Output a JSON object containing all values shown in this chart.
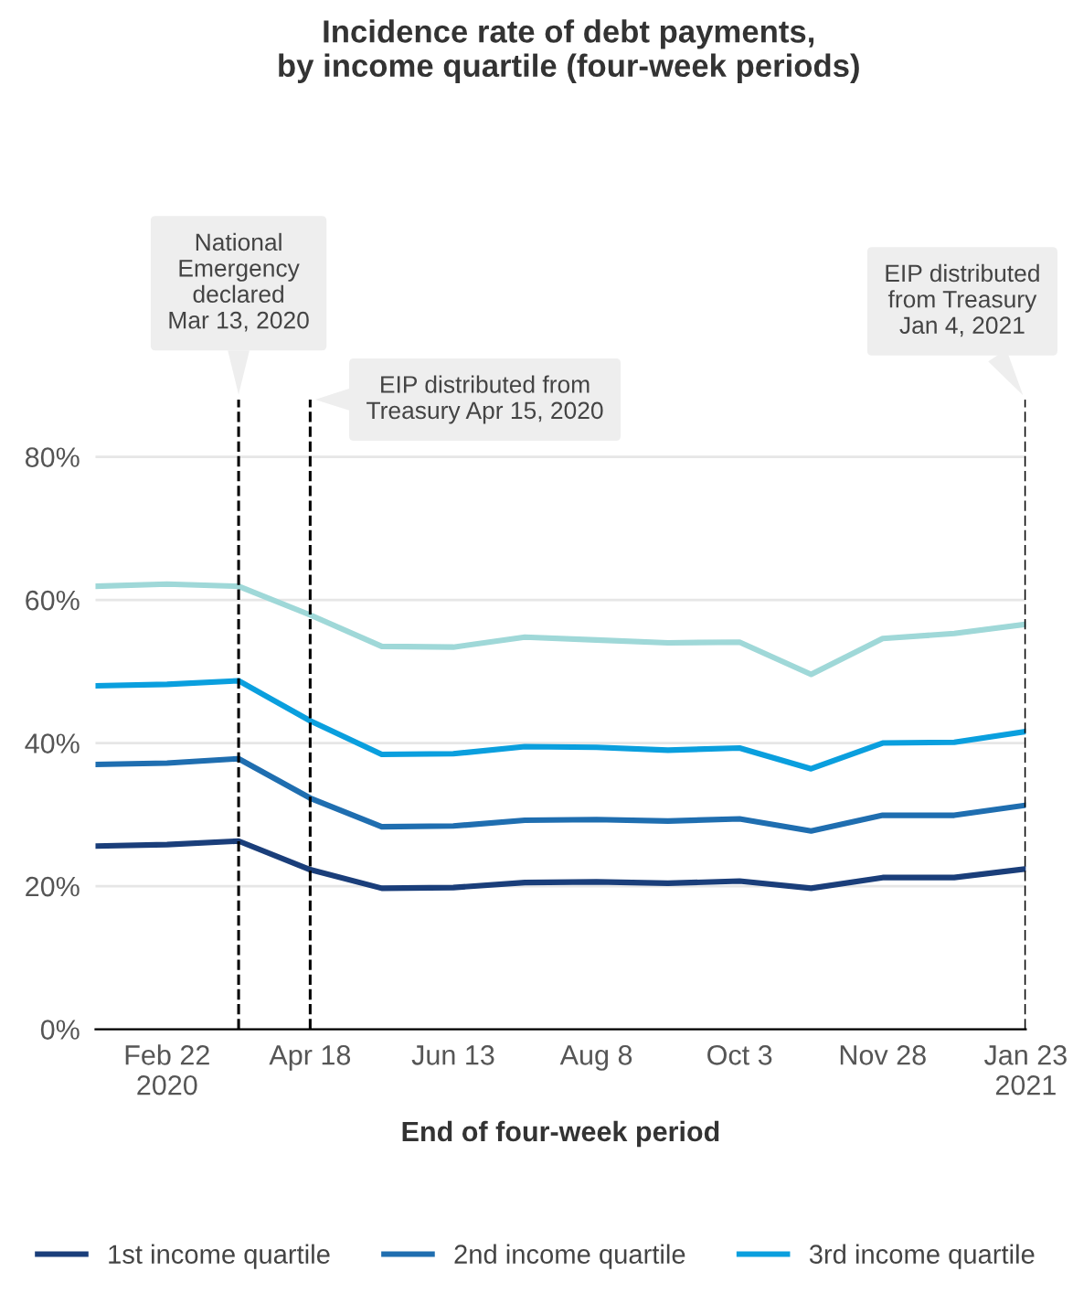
{
  "chart_data": {
    "type": "line",
    "title": "Incidence rate of debt payments,\nby income quartile (four-week periods)",
    "xlabel": "End of four-week period",
    "x": [
      "2020-01-25",
      "2020-02-22",
      "2020-03-21",
      "2020-04-18",
      "2020-05-16",
      "2020-06-13",
      "2020-07-11",
      "2020-08-08",
      "2020-09-05",
      "2020-10-03",
      "2020-10-31",
      "2020-11-28",
      "2020-12-26",
      "2021-01-23"
    ],
    "series": [
      {
        "name": "1st income quartile",
        "color": "#1a3e7a",
        "values": [
          25.6,
          25.8,
          26.3,
          22.3,
          19.7,
          19.8,
          20.5,
          20.6,
          20.4,
          20.7,
          19.7,
          21.2,
          21.2,
          22.4
        ]
      },
      {
        "name": "2nd income quartile",
        "color": "#1f6eb0",
        "values": [
          37.0,
          37.2,
          37.8,
          32.3,
          28.3,
          28.4,
          29.2,
          29.3,
          29.1,
          29.4,
          27.7,
          29.9,
          29.9,
          31.3
        ]
      },
      {
        "name": "3rd income quartile",
        "color": "#0a9fde",
        "values": [
          48.0,
          48.2,
          48.7,
          43.1,
          38.4,
          38.5,
          39.5,
          39.4,
          39.0,
          39.3,
          36.4,
          40.0,
          40.1,
          41.6
        ]
      },
      {
        "color": "#9fd8d8",
        "values": [
          61.9,
          62.2,
          61.9,
          57.9,
          53.5,
          53.4,
          54.8,
          54.4,
          54.0,
          54.1,
          49.6,
          54.6,
          55.3,
          56.6
        ]
      }
    ],
    "xlim": [
      "2020-01-25",
      "2021-01-23"
    ],
    "xticks": [
      {
        "value": "2020-02-22",
        "label": "Feb 22\n2020"
      },
      {
        "value": "2020-04-18",
        "label": "Apr 18"
      },
      {
        "value": "2020-06-13",
        "label": "Jun 13"
      },
      {
        "value": "2020-08-08",
        "label": "Aug 8"
      },
      {
        "value": "2020-10-03",
        "label": "Oct 3"
      },
      {
        "value": "2020-11-28",
        "label": "Nov 28"
      },
      {
        "value": "2021-01-23",
        "label": "Jan 23\n2021"
      }
    ],
    "ylim": [
      0,
      88
    ],
    "yticks": [
      {
        "value": 0,
        "label": "0%"
      },
      {
        "value": 20,
        "label": "20%"
      },
      {
        "value": 40,
        "label": "40%"
      },
      {
        "value": 60,
        "label": "60%"
      },
      {
        "value": 80,
        "label": "80%"
      }
    ],
    "ref_lines": [
      {
        "axis": "x",
        "value": "2020-03-21",
        "label": "National\nEmergency\ndeclared\nMar 13, 2020",
        "color": "#000000",
        "line_style": "dashed"
      },
      {
        "axis": "x",
        "value": "2020-04-18",
        "label": "EIP distributed from\nTreasury Apr 15, 2020",
        "color": "#000000",
        "line_style": "dashed"
      },
      {
        "axis": "x",
        "value": "2021-01-23",
        "label": "EIP distributed\nfrom Treasury\nJan 4, 2021",
        "color": "#000000",
        "line_style": "dashed"
      }
    ],
    "grid": "y",
    "legend": "bottom",
    "marker": "none",
    "line_style": "solid"
  }
}
